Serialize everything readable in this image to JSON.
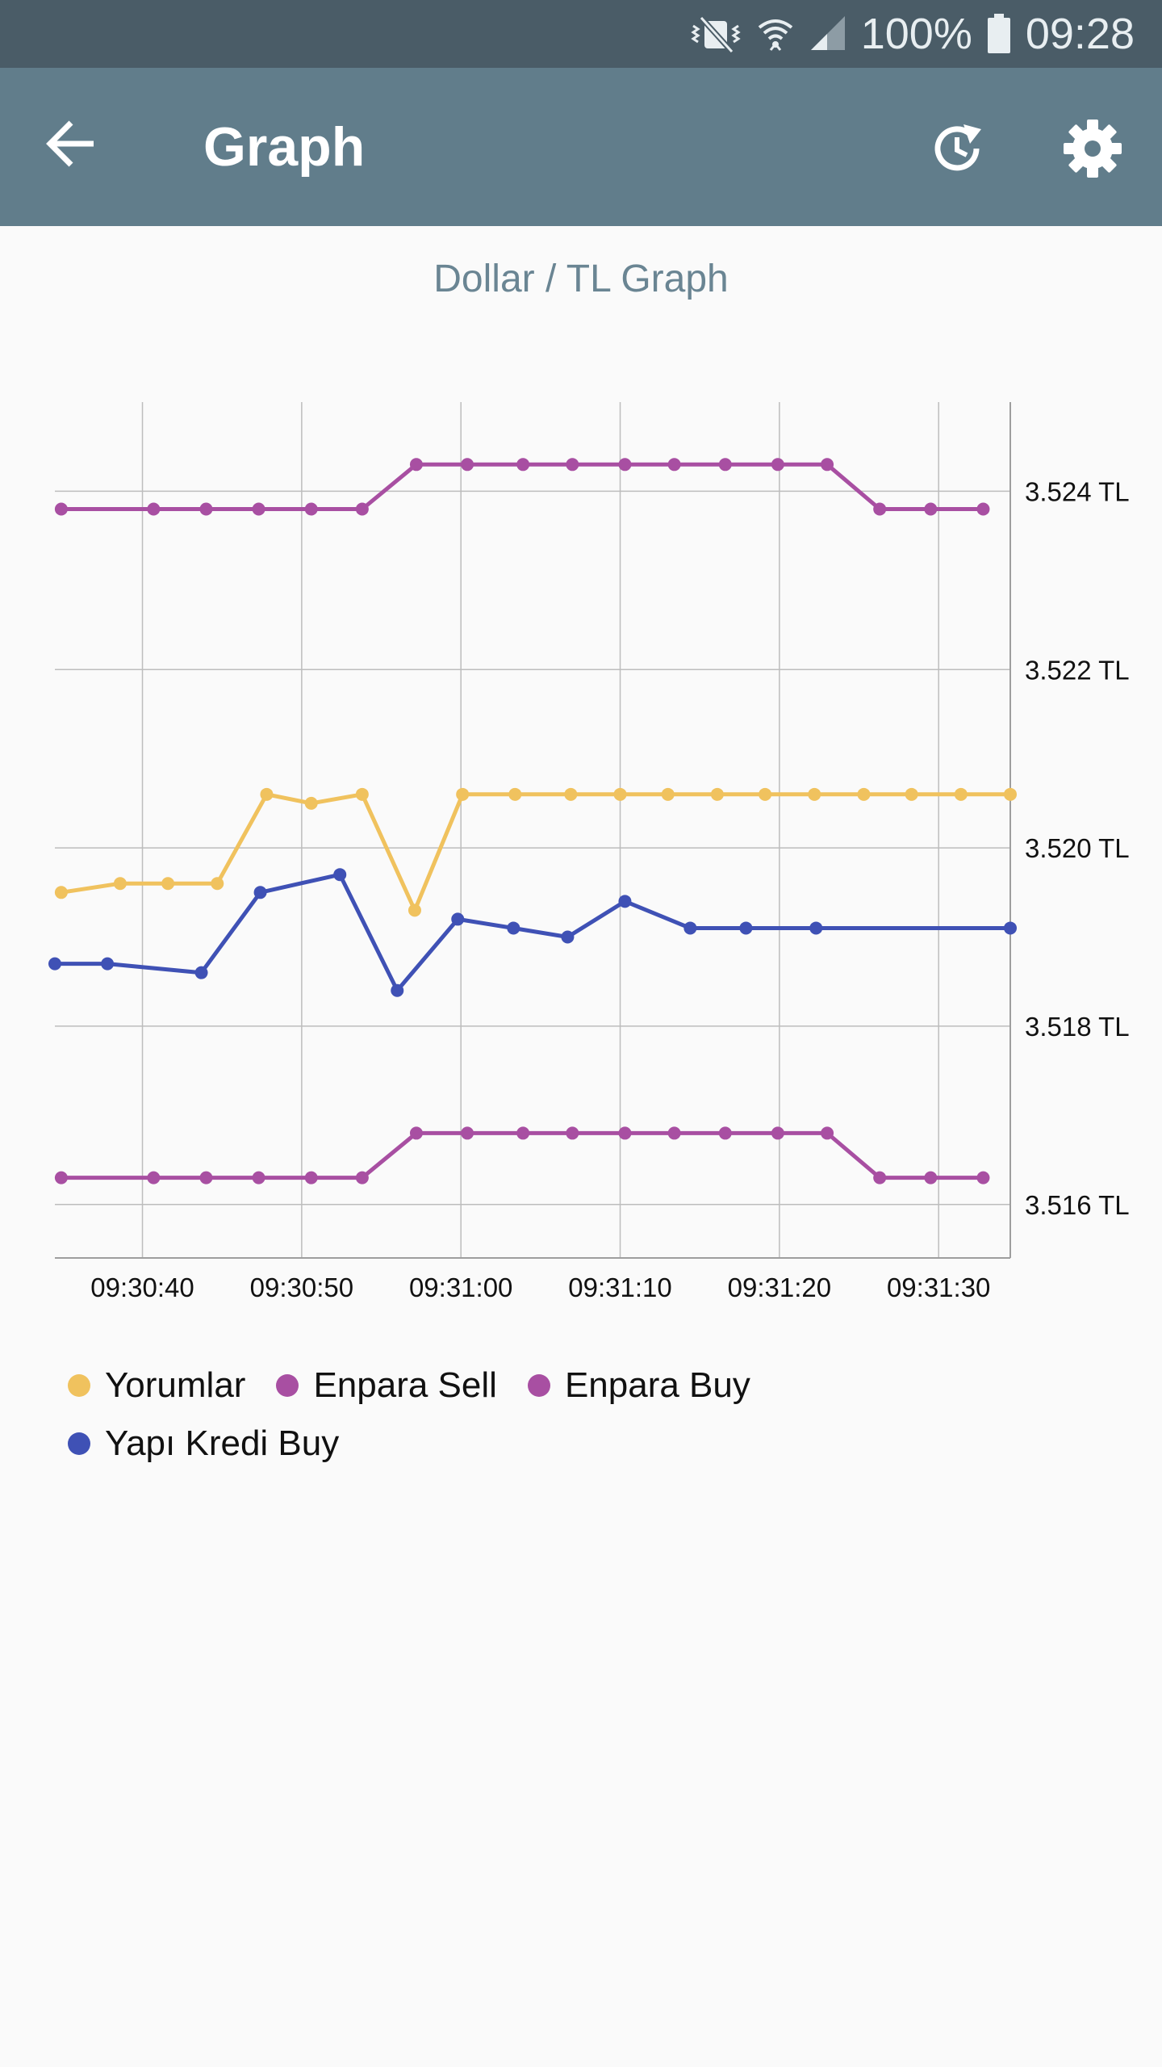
{
  "status_bar": {
    "battery": "100%",
    "time": "09:28",
    "icons": [
      "vibrate-mute-icon",
      "wifi-icon",
      "signal-icon",
      "battery-icon"
    ]
  },
  "app_bar": {
    "title": "Graph",
    "back_icon": "arrow-back-icon",
    "actions": [
      "history-refresh-icon",
      "settings-gear-icon"
    ]
  },
  "chart_data": {
    "type": "line",
    "title": "Dollar / TL Graph",
    "x_tick_labels": [
      "09:30:40",
      "09:30:50",
      "09:31:00",
      "09:31:10",
      "09:31:20",
      "09:31:30"
    ],
    "y_tick_labels": [
      "3.516 TL",
      "3.518 TL",
      "3.520 TL",
      "3.522 TL",
      "3.524 TL"
    ],
    "x_range_seconds": [
      "09:30:34.5",
      "09:31:34.5"
    ],
    "ylim": [
      3.5154,
      3.525
    ],
    "grid": true,
    "legend_position": "bottom-left",
    "series": [
      {
        "name": "Yorumlar",
        "color": "#f0c25e",
        "points": [
          [
            "09:30:34.9",
            3.5195
          ],
          [
            "09:30:38.6",
            3.5196
          ],
          [
            "09:30:41.6",
            3.5196
          ],
          [
            "09:30:44.7",
            3.5196
          ],
          [
            "09:30:47.8",
            3.5206
          ],
          [
            "09:30:50.6",
            3.5205
          ],
          [
            "09:30:53.8",
            3.5206
          ],
          [
            "09:30:57.1",
            3.5193
          ],
          [
            "09:31:00.1",
            3.5206
          ],
          [
            "09:31:03.4",
            3.5206
          ],
          [
            "09:31:06.9",
            3.5206
          ],
          [
            "09:31:10.0",
            3.5206
          ],
          [
            "09:31:13.0",
            3.5206
          ],
          [
            "09:31:16.1",
            3.5206
          ],
          [
            "09:31:19.1",
            3.5206
          ],
          [
            "09:31:22.2",
            3.5206
          ],
          [
            "09:31:25.3",
            3.5206
          ],
          [
            "09:31:28.3",
            3.5206
          ],
          [
            "09:31:31.4",
            3.5206
          ],
          [
            "09:31:34.5",
            3.5206
          ]
        ]
      },
      {
        "name": "Enpara Sell",
        "color": "#a84fa2",
        "points": [
          [
            "09:30:34.9",
            3.5238
          ],
          [
            "09:30:40.7",
            3.5238
          ],
          [
            "09:30:44.0",
            3.5238
          ],
          [
            "09:30:47.3",
            3.5238
          ],
          [
            "09:30:50.6",
            3.5238
          ],
          [
            "09:30:53.8",
            3.5238
          ],
          [
            "09:30:57.2",
            3.5243
          ],
          [
            "09:31:00.4",
            3.5243
          ],
          [
            "09:31:03.9",
            3.5243
          ],
          [
            "09:31:07.0",
            3.5243
          ],
          [
            "09:31:10.3",
            3.5243
          ],
          [
            "09:31:13.4",
            3.5243
          ],
          [
            "09:31:16.6",
            3.5243
          ],
          [
            "09:31:19.9",
            3.5243
          ],
          [
            "09:31:23.0",
            3.5243
          ],
          [
            "09:31:26.3",
            3.5238
          ],
          [
            "09:31:29.5",
            3.5238
          ],
          [
            "09:31:32.8",
            3.5238
          ]
        ]
      },
      {
        "name": "Enpara Buy",
        "color": "#a84fa2",
        "points": [
          [
            "09:30:34.9",
            3.5163
          ],
          [
            "09:30:40.7",
            3.5163
          ],
          [
            "09:30:44.0",
            3.5163
          ],
          [
            "09:30:47.3",
            3.5163
          ],
          [
            "09:30:50.6",
            3.5163
          ],
          [
            "09:30:53.8",
            3.5163
          ],
          [
            "09:30:57.2",
            3.5168
          ],
          [
            "09:31:00.4",
            3.5168
          ],
          [
            "09:31:03.9",
            3.5168
          ],
          [
            "09:31:07.0",
            3.5168
          ],
          [
            "09:31:10.3",
            3.5168
          ],
          [
            "09:31:13.4",
            3.5168
          ],
          [
            "09:31:16.6",
            3.5168
          ],
          [
            "09:31:19.9",
            3.5168
          ],
          [
            "09:31:23.0",
            3.5168
          ],
          [
            "09:31:26.3",
            3.5163
          ],
          [
            "09:31:29.5",
            3.5163
          ],
          [
            "09:31:32.8",
            3.5163
          ]
        ]
      },
      {
        "name": "Yapı Kredi Buy",
        "color": "#3f51b5",
        "points": [
          [
            "09:30:34.5",
            3.5187
          ],
          [
            "09:30:37.8",
            3.5187
          ],
          [
            "09:30:43.7",
            3.5186
          ],
          [
            "09:30:47.4",
            3.5195
          ],
          [
            "09:30:52.4",
            3.5197
          ],
          [
            "09:30:56.0",
            3.5184
          ],
          [
            "09:30:59.8",
            3.5192
          ],
          [
            "09:31:03.3",
            3.5191
          ],
          [
            "09:31:06.7",
            3.519
          ],
          [
            "09:31:10.3",
            3.5194
          ],
          [
            "09:31:14.4",
            3.5191
          ],
          [
            "09:31:17.9",
            3.5191
          ],
          [
            "09:31:22.3",
            3.5191
          ],
          [
            "09:31:34.5",
            3.5191
          ]
        ]
      }
    ]
  }
}
